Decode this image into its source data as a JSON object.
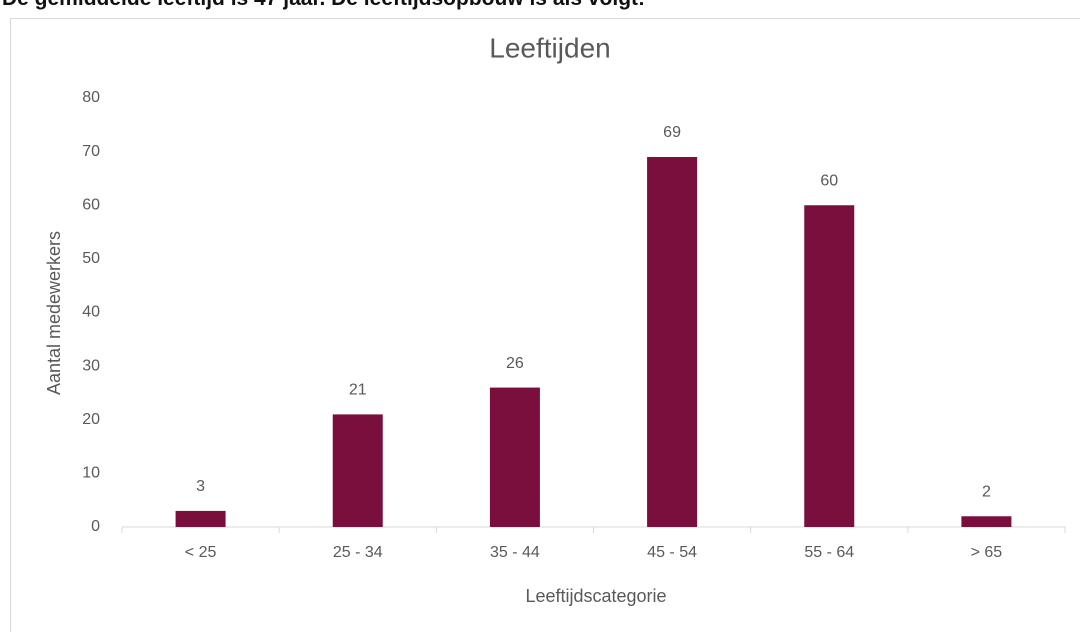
{
  "intro": "De gemiddelde leeftijd is 47 jaar. De leeftijdsopbouw is als volgt:",
  "chart_data": {
    "type": "bar",
    "title": "Leeftijden",
    "x_label": "Leeftijdscategorie",
    "y_label": "Aantal medewerkers",
    "categories": [
      "< 25",
      "25 - 34",
      "35 - 44",
      "45 - 54",
      "55 - 64",
      "> 65"
    ],
    "values": [
      3,
      21,
      26,
      69,
      60,
      2
    ],
    "color": "#7a0f3e",
    "ylim": [
      0,
      80
    ],
    "yticks": [
      0,
      10,
      20,
      30,
      40,
      50,
      60,
      70,
      80
    ],
    "grid": false
  }
}
